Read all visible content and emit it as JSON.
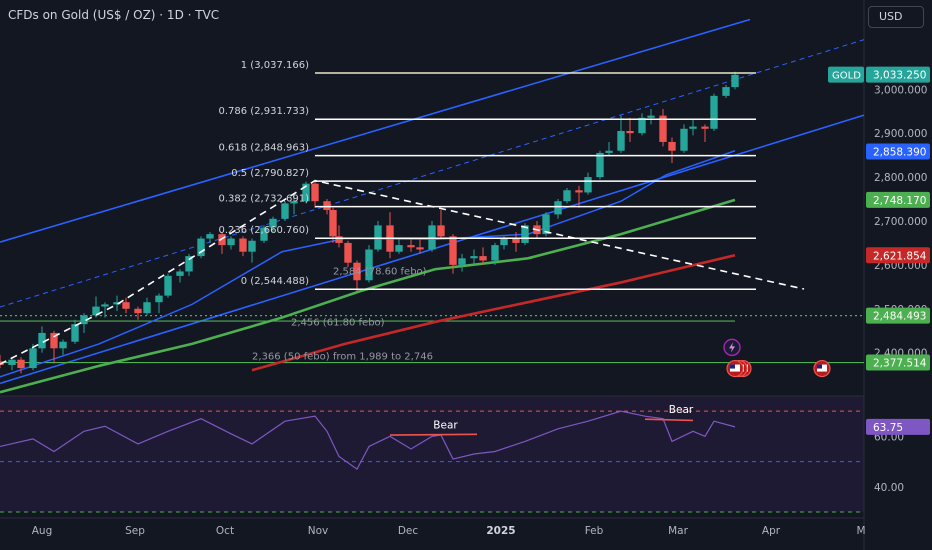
{
  "header": {
    "title": "CFDs on Gold (US$ / OZ) · 1D · TVC",
    "currency": "USD"
  },
  "colors": {
    "background": "#131722",
    "rsi_background": "#1e1a33",
    "up": "#26a69a",
    "down": "#ef5350",
    "channel": "#2962ff",
    "ma_short": "#2962ff",
    "ma_mid": "#4caf50",
    "ma_long": "#c62828",
    "fib_line": "#ffffff",
    "dashed_trend": "#ffffff",
    "rsi_line": "#7e57c2",
    "bear_line": "#ef5350",
    "level_green": "#4caf50"
  },
  "chart_data": {
    "type": "candlestick",
    "symbol": "GOLD",
    "price_axis": {
      "range": [
        2315,
        3135
      ],
      "ticks": [
        "3,000.000",
        "2,900.000",
        "2,800.000",
        "2,700.000",
        "2,600.000",
        "2,500.000",
        "2,400.000"
      ],
      "tick_values": [
        3000,
        2900,
        2800,
        2700,
        2600,
        2500,
        2400
      ]
    },
    "time_axis": {
      "labels": [
        "Aug",
        "Sep",
        "Oct",
        "Nov",
        "Dec",
        "2025",
        "Feb",
        "Mar",
        "Apr",
        "M"
      ],
      "label_dates": [
        "2024-08-01",
        "2024-09-01",
        "2024-10-01",
        "2024-11-01",
        "2024-12-01",
        "2025-01-01",
        "2025-02-01",
        "2025-03-01",
        "2025-04-01",
        "2025-05-01"
      ],
      "range": [
        "2024-07-18",
        "2025-05-02"
      ]
    },
    "price_badges": [
      {
        "label": "GOLD",
        "value": "3,033.250",
        "price": 3033.25,
        "color": "#26a69a"
      },
      {
        "label": "",
        "value": "2,858.390",
        "price": 2858.39,
        "color": "#2962ff"
      },
      {
        "label": "",
        "value": "2,748.170",
        "price": 2748.17,
        "color": "#4caf50"
      },
      {
        "label": "",
        "value": "2,621.854",
        "price": 2621.854,
        "color": "#c62828"
      },
      {
        "label": "",
        "value": "2,484.493",
        "price": 2484.493,
        "color": "#4caf50"
      },
      {
        "label": "",
        "value": "2,377.514",
        "price": 2377.514,
        "color": "#4caf50"
      }
    ],
    "fib_retracement": {
      "start_date": "2024-10-31",
      "end_date": "2025-03-27",
      "levels": [
        {
          "label": "1 (3,037.166)",
          "price": 3037.166
        },
        {
          "label": "0.786 (2,931.733)",
          "price": 2931.733
        },
        {
          "label": "0.618 (2,848.963)",
          "price": 2848.963
        },
        {
          "label": "0.5 (2,790.827)",
          "price": 2790.827
        },
        {
          "label": "0.382 (2,732.691)",
          "price": 2732.691
        },
        {
          "label": "0.236 (2,660.760)",
          "price": 2660.76
        },
        {
          "label": "0 (2,544.488)",
          "price": 2544.488
        }
      ]
    },
    "annotations": [
      {
        "text": "2,584 (78.60 febo)",
        "date": "2024-11-06",
        "price": 2578
      },
      {
        "text": "2,456 (61.80 febo)",
        "date": "2024-10-23",
        "price": 2462
      },
      {
        "text": "2,366  (50 febo)  from 1,989 to 2,746",
        "date": "2024-10-10",
        "price": 2384
      }
    ],
    "horizontal_levels": [
      {
        "price": 2484.493,
        "style": "dotted",
        "color": "#4caf50",
        "full_width": true
      },
      {
        "price": 2472,
        "style": "solid",
        "color": "#4caf50",
        "end_date": "2025-03-20"
      },
      {
        "price": 2377.514,
        "style": "solid",
        "color": "#4caf50",
        "full_width": true
      }
    ],
    "upper_channel": [
      {
        "date": "2024-07-18",
        "price": 2652
      },
      {
        "date": "2025-03-25",
        "price": 3159
      }
    ],
    "upper_channel_dashed": [
      {
        "date": "2024-07-18",
        "price": 2504
      },
      {
        "date": "2025-05-02",
        "price": 3113
      }
    ],
    "lower_channel": [
      {
        "date": "2024-07-18",
        "price": 2330
      },
      {
        "date": "2025-05-02",
        "price": 2941
      }
    ],
    "dashed_trend": [
      {
        "date": "2024-07-18",
        "price": 2374
      },
      {
        "date": "2024-08-26",
        "price": 2510
      },
      {
        "date": "2024-10-31",
        "price": 2792
      },
      {
        "date": "2025-04-12",
        "price": 2545
      }
    ],
    "moving_averages": [
      {
        "color": "#2962ff",
        "points": [
          [
            "2024-07-18",
            2345
          ],
          [
            "2024-08-20",
            2420
          ],
          [
            "2024-09-20",
            2510
          ],
          [
            "2024-10-20",
            2630
          ],
          [
            "2024-11-10",
            2660
          ],
          [
            "2024-12-10",
            2658
          ],
          [
            "2025-01-10",
            2670
          ],
          [
            "2025-02-10",
            2745
          ],
          [
            "2025-02-25",
            2805
          ],
          [
            "2025-03-20",
            2860
          ]
        ]
      },
      {
        "color": "#4caf50",
        "points": [
          [
            "2024-07-18",
            2310
          ],
          [
            "2024-08-20",
            2370
          ],
          [
            "2024-09-20",
            2420
          ],
          [
            "2024-10-20",
            2480
          ],
          [
            "2024-11-15",
            2540
          ],
          [
            "2024-12-10",
            2590
          ],
          [
            "2025-01-10",
            2615
          ],
          [
            "2025-02-10",
            2670
          ],
          [
            "2025-03-20",
            2748
          ]
        ]
      },
      {
        "color": "#c62828",
        "points": [
          [
            "2024-10-10",
            2360
          ],
          [
            "2024-11-10",
            2420
          ],
          [
            "2024-12-10",
            2470
          ],
          [
            "2025-01-10",
            2515
          ],
          [
            "2025-02-10",
            2560
          ],
          [
            "2025-03-20",
            2622
          ]
        ]
      }
    ],
    "candles": [
      [
        "2024-07-18",
        2380,
        2395,
        2365,
        2372
      ],
      [
        "2024-07-22",
        2372,
        2385,
        2360,
        2384
      ],
      [
        "2024-07-25",
        2384,
        2390,
        2353,
        2365
      ],
      [
        "2024-07-29",
        2365,
        2420,
        2360,
        2410
      ],
      [
        "2024-08-01",
        2410,
        2460,
        2400,
        2445
      ],
      [
        "2024-08-05",
        2445,
        2450,
        2375,
        2410
      ],
      [
        "2024-08-08",
        2410,
        2430,
        2395,
        2425
      ],
      [
        "2024-08-12",
        2425,
        2475,
        2420,
        2465
      ],
      [
        "2024-08-15",
        2465,
        2490,
        2445,
        2485
      ],
      [
        "2024-08-19",
        2485,
        2528,
        2480,
        2505
      ],
      [
        "2024-08-22",
        2505,
        2515,
        2480,
        2510
      ],
      [
        "2024-08-26",
        2510,
        2530,
        2495,
        2515
      ],
      [
        "2024-08-29",
        2515,
        2525,
        2490,
        2500
      ],
      [
        "2024-09-02",
        2500,
        2505,
        2475,
        2490
      ],
      [
        "2024-09-05",
        2490,
        2525,
        2485,
        2515
      ],
      [
        "2024-09-09",
        2515,
        2535,
        2490,
        2530
      ],
      [
        "2024-09-12",
        2530,
        2580,
        2525,
        2575
      ],
      [
        "2024-09-16",
        2575,
        2590,
        2560,
        2585
      ],
      [
        "2024-09-19",
        2585,
        2625,
        2575,
        2620
      ],
      [
        "2024-09-23",
        2620,
        2665,
        2615,
        2660
      ],
      [
        "2024-09-26",
        2660,
        2675,
        2650,
        2670
      ],
      [
        "2024-09-30",
        2670,
        2675,
        2625,
        2645
      ],
      [
        "2024-10-03",
        2645,
        2665,
        2635,
        2660
      ],
      [
        "2024-10-07",
        2660,
        2665,
        2620,
        2630
      ],
      [
        "2024-10-10",
        2630,
        2660,
        2605,
        2655
      ],
      [
        "2024-10-14",
        2655,
        2690,
        2650,
        2685
      ],
      [
        "2024-10-17",
        2685,
        2710,
        2675,
        2705
      ],
      [
        "2024-10-21",
        2705,
        2745,
        2700,
        2740
      ],
      [
        "2024-10-24",
        2740,
        2760,
        2715,
        2745
      ],
      [
        "2024-10-28",
        2745,
        2790,
        2740,
        2785
      ],
      [
        "2024-10-31",
        2785,
        2792,
        2730,
        2745
      ],
      [
        "2024-11-04",
        2745,
        2750,
        2715,
        2725
      ],
      [
        "2024-11-06",
        2725,
        2730,
        2650,
        2665
      ],
      [
        "2024-11-08",
        2665,
        2690,
        2640,
        2650
      ],
      [
        "2024-11-11",
        2650,
        2655,
        2595,
        2605
      ],
      [
        "2024-11-14",
        2605,
        2610,
        2540,
        2565
      ],
      [
        "2024-11-18",
        2565,
        2645,
        2560,
        2635
      ],
      [
        "2024-11-21",
        2635,
        2700,
        2630,
        2690
      ],
      [
        "2024-11-25",
        2690,
        2720,
        2615,
        2630
      ],
      [
        "2024-11-28",
        2630,
        2660,
        2625,
        2645
      ],
      [
        "2024-12-02",
        2645,
        2660,
        2630,
        2640
      ],
      [
        "2024-12-05",
        2640,
        2660,
        2625,
        2635
      ],
      [
        "2024-12-09",
        2635,
        2700,
        2630,
        2690
      ],
      [
        "2024-12-12",
        2690,
        2725,
        2660,
        2665
      ],
      [
        "2024-12-16",
        2665,
        2670,
        2580,
        2600
      ],
      [
        "2024-12-19",
        2600,
        2625,
        2585,
        2615
      ],
      [
        "2024-12-23",
        2615,
        2635,
        2600,
        2620
      ],
      [
        "2024-12-26",
        2620,
        2640,
        2600,
        2610
      ],
      [
        "2024-12-30",
        2610,
        2650,
        2600,
        2645
      ],
      [
        "2025-01-02",
        2645,
        2665,
        2635,
        2660
      ],
      [
        "2025-01-06",
        2660,
        2675,
        2630,
        2650
      ],
      [
        "2025-01-09",
        2650,
        2695,
        2645,
        2690
      ],
      [
        "2025-01-13",
        2690,
        2700,
        2660,
        2670
      ],
      [
        "2025-01-16",
        2670,
        2720,
        2665,
        2715
      ],
      [
        "2025-01-20",
        2715,
        2750,
        2705,
        2745
      ],
      [
        "2025-01-23",
        2745,
        2775,
        2740,
        2770
      ],
      [
        "2025-01-27",
        2770,
        2780,
        2730,
        2765
      ],
      [
        "2025-01-30",
        2765,
        2810,
        2760,
        2800
      ],
      [
        "2025-02-03",
        2800,
        2860,
        2795,
        2855
      ],
      [
        "2025-02-06",
        2855,
        2880,
        2850,
        2860
      ],
      [
        "2025-02-10",
        2860,
        2940,
        2855,
        2905
      ],
      [
        "2025-02-13",
        2905,
        2935,
        2880,
        2900
      ],
      [
        "2025-02-17",
        2900,
        2945,
        2895,
        2935
      ],
      [
        "2025-02-20",
        2935,
        2955,
        2920,
        2940
      ],
      [
        "2025-02-24",
        2940,
        2955,
        2870,
        2880
      ],
      [
        "2025-02-27",
        2880,
        2890,
        2832,
        2860
      ],
      [
        "2025-03-03",
        2860,
        2920,
        2855,
        2910
      ],
      [
        "2025-03-06",
        2910,
        2930,
        2895,
        2915
      ],
      [
        "2025-03-10",
        2915,
        2920,
        2880,
        2910
      ],
      [
        "2025-03-13",
        2910,
        2990,
        2905,
        2985
      ],
      [
        "2025-03-17",
        2985,
        3010,
        2980,
        3005
      ],
      [
        "2025-03-20",
        3005,
        3040,
        3000,
        3033
      ]
    ],
    "event_markers": [
      {
        "type": "flag-us-cluster",
        "date": "2025-03-20",
        "price": 2377.514
      },
      {
        "type": "flag-us",
        "date": "2025-04-18",
        "price": 2377.514
      },
      {
        "type": "lightning",
        "date": "2025-03-19",
        "price": 2412
      }
    ],
    "rsi": {
      "value_label": "63.75",
      "value": 63.75,
      "axis_range": [
        30,
        76
      ],
      "ticks": [
        "60.00",
        "40.00"
      ],
      "tick_values": [
        60,
        40
      ],
      "upper_band": 70,
      "middle_band": 50,
      "lower_band": 30,
      "bear_labels": [
        {
          "text": "Bear",
          "from": [
            "2024-11-25",
            60.5
          ],
          "to": [
            "2024-12-24",
            60.8
          ]
        },
        {
          "text": "Bear",
          "from": [
            "2025-02-18",
            66.8
          ],
          "to": [
            "2025-03-06",
            66.3
          ]
        }
      ],
      "values": [
        [
          "2024-07-18",
          56
        ],
        [
          "2024-07-29",
          59
        ],
        [
          "2024-08-05",
          54
        ],
        [
          "2024-08-15",
          62
        ],
        [
          "2024-08-22",
          64
        ],
        [
          "2024-09-02",
          57
        ],
        [
          "2024-09-12",
          62
        ],
        [
          "2024-09-23",
          67
        ],
        [
          "2024-10-03",
          61
        ],
        [
          "2024-10-10",
          57
        ],
        [
          "2024-10-21",
          66
        ],
        [
          "2024-10-31",
          68
        ],
        [
          "2024-11-04",
          62
        ],
        [
          "2024-11-08",
          52
        ],
        [
          "2024-11-14",
          47
        ],
        [
          "2024-11-18",
          56
        ],
        [
          "2024-11-25",
          60
        ],
        [
          "2024-12-02",
          55
        ],
        [
          "2024-12-09",
          60
        ],
        [
          "2024-12-12",
          60.5
        ],
        [
          "2024-12-16",
          51
        ],
        [
          "2024-12-23",
          53
        ],
        [
          "2024-12-30",
          54
        ],
        [
          "2025-01-09",
          58
        ],
        [
          "2025-01-20",
          63
        ],
        [
          "2025-01-30",
          66
        ],
        [
          "2025-02-10",
          70
        ],
        [
          "2025-02-18",
          68
        ],
        [
          "2025-02-24",
          67
        ],
        [
          "2025-02-27",
          58
        ],
        [
          "2025-03-06",
          62
        ],
        [
          "2025-03-10",
          60
        ],
        [
          "2025-03-13",
          66
        ],
        [
          "2025-03-20",
          63.75
        ]
      ]
    }
  }
}
